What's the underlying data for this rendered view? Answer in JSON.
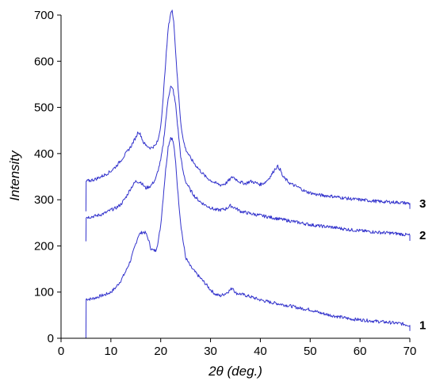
{
  "chart_data": {
    "type": "line",
    "title": "",
    "xlabel": "2θ (deg.)",
    "ylabel": "Intensity",
    "xlim": [
      0,
      70
    ],
    "ylim": [
      0,
      700
    ],
    "xticks": [
      0,
      10,
      20,
      30,
      40,
      50,
      60,
      70
    ],
    "yticks": [
      0,
      100,
      200,
      300,
      400,
      500,
      600,
      700
    ],
    "grid": false,
    "line_color": "#3333cc",
    "series": [
      {
        "name": "1",
        "x": [
          5.0,
          5.05,
          6,
          7,
          8,
          9,
          10,
          11,
          12,
          13,
          14,
          15,
          15.5,
          16,
          16.5,
          17,
          17.5,
          18,
          18.5,
          19,
          19.5,
          20,
          20.5,
          21,
          21.5,
          22,
          22.3,
          22.6,
          23,
          23.5,
          24,
          24.5,
          25,
          26,
          27,
          28,
          29,
          30,
          31,
          32,
          33,
          34,
          34.5,
          35,
          36,
          38,
          40,
          42,
          44,
          46,
          48,
          50,
          52,
          54,
          56,
          58,
          60,
          62,
          64,
          66,
          68,
          70
        ],
        "y": [
          0,
          85,
          85,
          88,
          92,
          95,
          100,
          110,
          125,
          145,
          170,
          205,
          222,
          228,
          230,
          228,
          215,
          195,
          190,
          190,
          210,
          245,
          305,
          365,
          415,
          435,
          432,
          420,
          380,
          310,
          250,
          210,
          175,
          155,
          142,
          130,
          118,
          105,
          95,
          92,
          97,
          105,
          110,
          98,
          96,
          90,
          83,
          78,
          74,
          70,
          65,
          62,
          55,
          50,
          46,
          42,
          40,
          38,
          36,
          34,
          32,
          28
        ]
      },
      {
        "name": "2",
        "x": [
          5.0,
          5.05,
          6,
          7,
          8,
          9,
          10,
          11,
          12,
          13,
          14,
          15,
          16,
          17,
          18,
          19,
          20,
          20.5,
          21,
          21.5,
          22,
          22.5,
          23,
          23.5,
          24,
          24.5,
          25,
          26,
          27,
          28,
          29,
          30,
          31,
          32,
          33,
          34,
          35,
          36,
          38,
          40,
          42,
          44,
          46,
          48,
          50,
          52,
          54,
          56,
          58,
          60,
          62,
          64,
          66,
          68,
          70
        ],
        "y": [
          210,
          262,
          263,
          265,
          268,
          272,
          278,
          282,
          290,
          305,
          325,
          340,
          338,
          325,
          330,
          345,
          385,
          420,
          470,
          520,
          545,
          538,
          505,
          450,
          395,
          360,
          340,
          320,
          305,
          295,
          288,
          283,
          278,
          278,
          280,
          287,
          282,
          275,
          270,
          266,
          262,
          258,
          254,
          250,
          246,
          243,
          241,
          238,
          235,
          233,
          231,
          229,
          228,
          226,
          223
        ]
      },
      {
        "name": "3",
        "x": [
          5.0,
          5.05,
          6,
          7,
          8,
          9,
          10,
          11,
          12,
          13,
          14,
          15,
          15.5,
          16,
          16.5,
          17,
          18,
          19,
          19.5,
          20,
          20.5,
          21,
          21.5,
          22,
          22.3,
          22.6,
          23,
          23.5,
          24,
          24.5,
          25,
          26,
          27,
          28,
          29,
          30,
          31,
          32,
          33,
          34,
          34.5,
          35,
          36,
          37,
          38,
          39,
          40,
          41,
          42,
          43,
          43.5,
          44,
          44.5,
          45,
          46,
          47,
          48,
          49,
          50,
          51,
          52,
          54,
          56,
          58,
          60,
          62,
          64,
          66,
          68,
          70
        ],
        "y": [
          275,
          340,
          342,
          345,
          350,
          355,
          362,
          372,
          385,
          400,
          415,
          435,
          448,
          440,
          425,
          418,
          412,
          418,
          430,
          460,
          520,
          600,
          670,
          705,
          708,
          690,
          620,
          540,
          470,
          430,
          410,
          390,
          375,
          362,
          350,
          342,
          336,
          332,
          335,
          345,
          350,
          345,
          338,
          335,
          340,
          337,
          333,
          338,
          350,
          368,
          372,
          365,
          350,
          345,
          335,
          330,
          325,
          318,
          315,
          312,
          310,
          308,
          305,
          302,
          300,
          298,
          296,
          295,
          294,
          292
        ]
      }
    ]
  }
}
